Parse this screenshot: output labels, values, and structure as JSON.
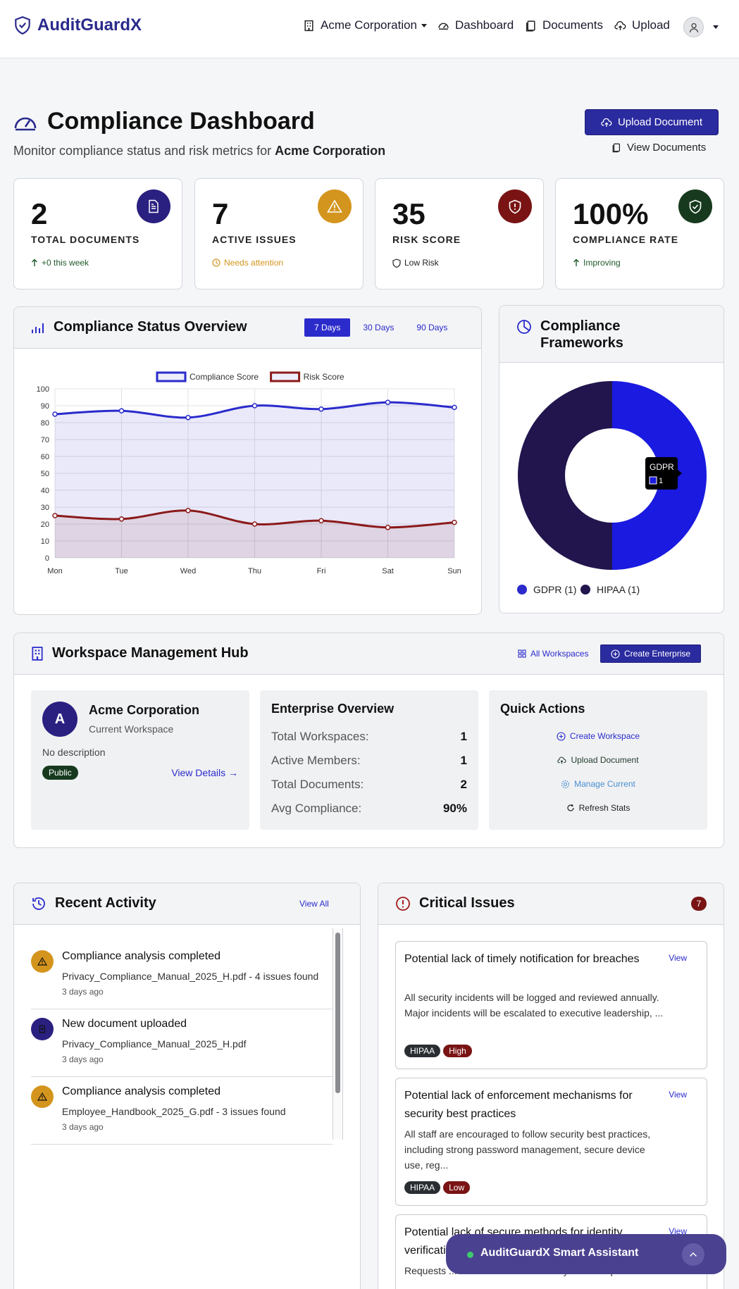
{
  "nav": {
    "brand": "AuditGuardX",
    "org_selector": "Acme Corporation",
    "dashboard": "Dashboard",
    "documents": "Documents",
    "upload": "Upload"
  },
  "header": {
    "title": "Compliance Dashboard",
    "subtitle_prefix": "Monitor compliance status and risk metrics for",
    "subtitle_org": "Acme Corporation",
    "upload_button": "Upload Document",
    "view_docs_button": "View Documents"
  },
  "stats": [
    {
      "value": "2",
      "label": "TOTAL DOCUMENTS",
      "trend": "+0 this week",
      "color": "#2a2080"
    },
    {
      "value": "7",
      "label": "ACTIVE ISSUES",
      "trend": "Needs attention",
      "color": "#d4951e"
    },
    {
      "value": "35",
      "label": "RISK SCORE",
      "trend": "Low Risk",
      "color": "#7a1414"
    },
    {
      "value": "100%",
      "label": "COMPLIANCE RATE",
      "trend": "Improving",
      "color": "#173a1e"
    }
  ],
  "overview": {
    "title": "Compliance Status Overview",
    "tabs": [
      "7 Days",
      "30 Days",
      "90 Days"
    ],
    "active_tab": "7 Days"
  },
  "chart_data": [
    {
      "type": "line",
      "title": "",
      "x": [
        "Mon",
        "Tue",
        "Wed",
        "Thu",
        "Fri",
        "Sat",
        "Sun"
      ],
      "series": [
        {
          "name": "Compliance Score",
          "values": [
            85,
            87,
            83,
            90,
            88,
            92,
            89
          ],
          "color": "#2b2bcc"
        },
        {
          "name": "Risk Score",
          "values": [
            25,
            23,
            28,
            20,
            22,
            18,
            21
          ],
          "color": "#8b1a1a"
        }
      ],
      "ylim": [
        0,
        100
      ],
      "yticks": [
        0,
        10,
        20,
        30,
        40,
        50,
        60,
        70,
        80,
        90,
        100
      ],
      "grid": true,
      "legend": "top-center"
    },
    {
      "type": "pie",
      "title": "",
      "categories": [
        "GDPR",
        "HIPAA"
      ],
      "values": [
        1,
        1
      ],
      "legend_labels": [
        "GDPR (1)",
        "HIPAA (1)"
      ],
      "colors": [
        "#1a1ae0",
        "#22154e"
      ],
      "tooltip": {
        "label": "GDPR",
        "value": "1"
      },
      "legend": "bottom"
    }
  ],
  "frameworks": {
    "title_line1": "Compliance",
    "title_line2": "Frameworks"
  },
  "hub": {
    "title": "Workspace Management Hub",
    "all_workspaces": "All Workspaces",
    "create_enterprise": "Create Enterprise",
    "workspace": {
      "initial": "A",
      "name": "Acme Corporation",
      "subtitle": "Current Workspace",
      "description": "No description",
      "visibility": "Public",
      "details_link": "View Details →"
    },
    "overview": {
      "title": "Enterprise Overview",
      "rows": [
        {
          "k": "Total Workspaces:",
          "v": "1"
        },
        {
          "k": "Active Members:",
          "v": "1"
        },
        {
          "k": "Total Documents:",
          "v": "2"
        },
        {
          "k": "Avg Compliance:",
          "v": "90%"
        }
      ]
    },
    "quick": {
      "title": "Quick Actions",
      "create": "Create Workspace",
      "upload": "Upload Document",
      "manage": "Manage Current",
      "refresh": "Refresh Stats"
    }
  },
  "activity": {
    "title": "Recent Activity",
    "view_all": "View All",
    "items": [
      {
        "title": "Compliance analysis completed",
        "desc": "Privacy_Compliance_Manual_2025_H.pdf - 4 issues found",
        "time": "3 days ago",
        "kind": "warning"
      },
      {
        "title": "New document uploaded",
        "desc": "Privacy_Compliance_Manual_2025_H.pdf",
        "time": "3 days ago",
        "kind": "document"
      },
      {
        "title": "Compliance analysis completed",
        "desc": "Employee_Handbook_2025_G.pdf - 3 issues found",
        "time": "3 days ago",
        "kind": "warning"
      }
    ]
  },
  "issues": {
    "title": "Critical Issues",
    "count": "7",
    "items": [
      {
        "title": "Potential lack of timely notification for breaches",
        "desc": "All security incidents will be logged and reviewed annually. Major incidents will be escalated to executive leadership, ...",
        "framework": "HIPAA",
        "severity": "High",
        "view": "View"
      },
      {
        "title": "Potential lack of enforcement mechanisms for security best practices",
        "desc": "All staff are encouraged to follow security best practices, including strong password management, secure device use, reg...",
        "framework": "HIPAA",
        "severity": "Low",
        "view": "View"
      },
      {
        "title": "Potential lack of secure methods for identity verification",
        "desc": "Requests ... verification of the identity of the requester.",
        "view": "View"
      }
    ]
  },
  "assistant": {
    "label": "AuditGuardX Smart Assistant"
  }
}
